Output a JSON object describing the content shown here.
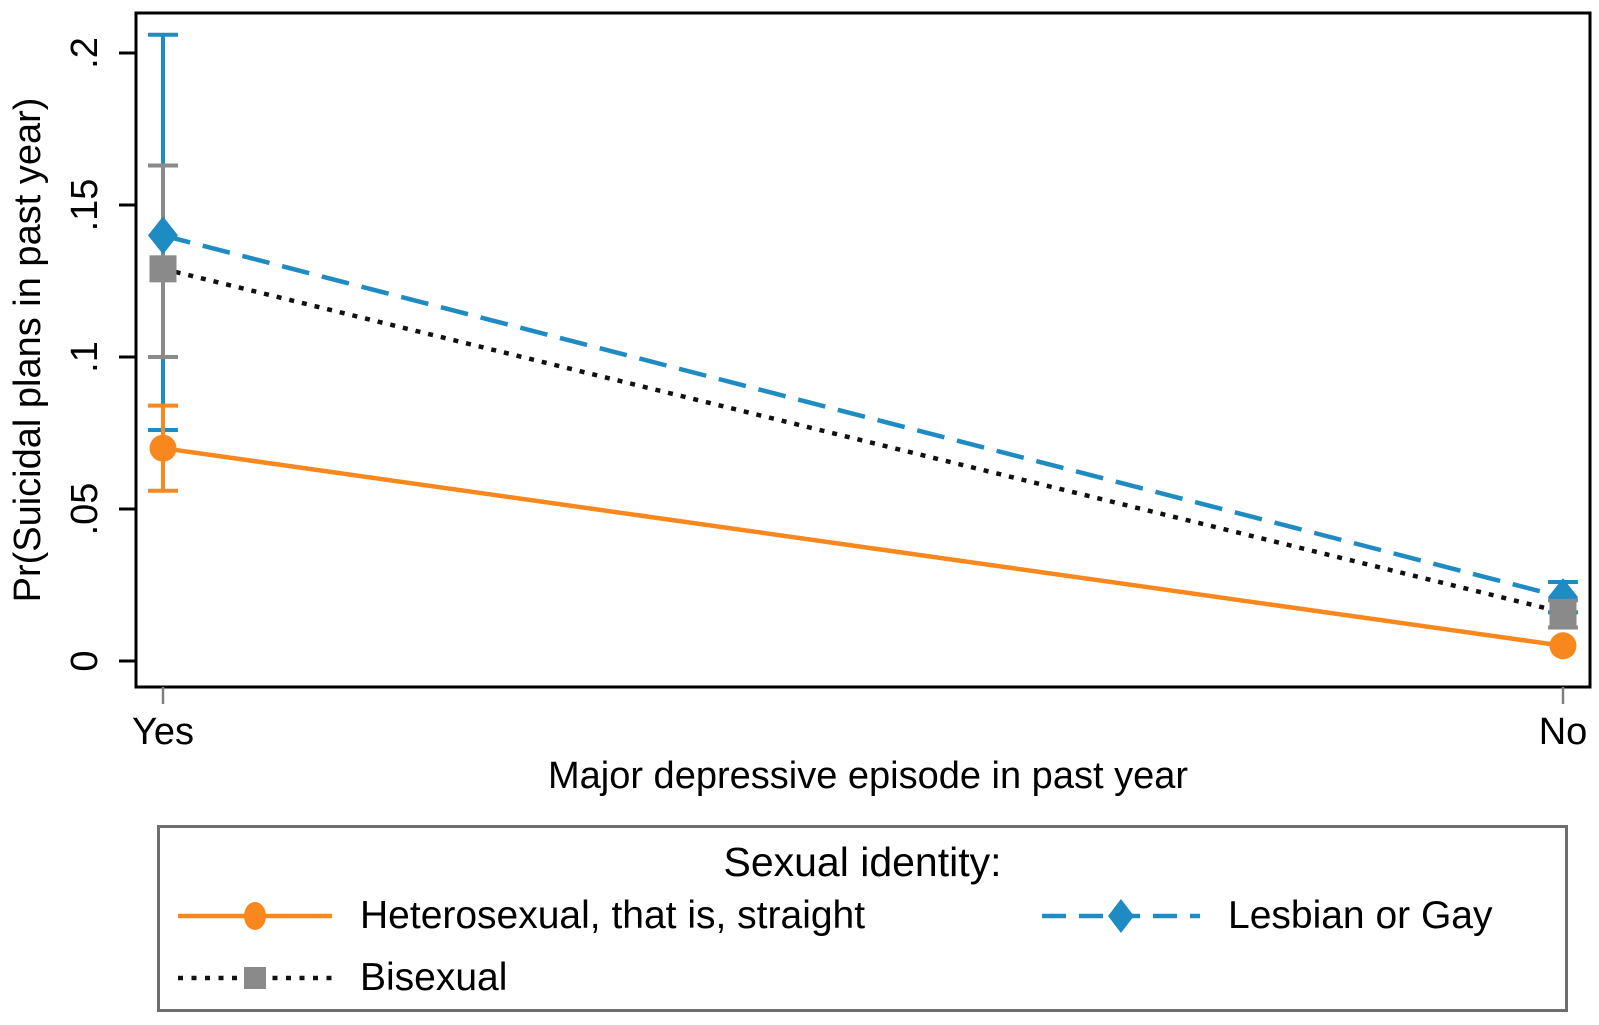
{
  "chart_data": {
    "type": "line",
    "title": "",
    "xlabel": "Major depressive episode in past year",
    "ylabel": "Pr(Suicidal plans in past year)",
    "categories": [
      "Yes",
      "No"
    ],
    "ytick_labels": [
      "0",
      ".05",
      ".1",
      ".15",
      ".2"
    ],
    "ytick_values": [
      0,
      0.05,
      0.1,
      0.15,
      0.2
    ],
    "ylim": [
      -0.009,
      0.215
    ],
    "grid": false,
    "legend": {
      "title": "Sexual identity:",
      "position": "bottom"
    },
    "colors": {
      "heterosexual": "#F8871D",
      "lesbian_gay": "#1E8BC3",
      "bisexual_marker": "#8A8A8A",
      "bisexual_line": "#111111",
      "axis": "#000000",
      "x_tick": "#808080",
      "legend_border": "#6E6E6E"
    },
    "series": [
      {
        "name": "Heterosexual, that is, straight",
        "marker": "circle",
        "line_style": "solid",
        "marker_color": "#F8871D",
        "line_color": "#F8871D",
        "values": [
          0.07,
          0.005
        ],
        "ci_low": [
          0.056,
          null
        ],
        "ci_high": [
          0.084,
          null
        ]
      },
      {
        "name": "Lesbian or Gay",
        "marker": "diamond",
        "line_style": "dashed",
        "marker_color": "#1E8BC3",
        "line_color": "#1E8BC3",
        "values": [
          0.14,
          0.021
        ],
        "ci_low": [
          0.076,
          0.016
        ],
        "ci_high": [
          0.206,
          0.026
        ]
      },
      {
        "name": "Bisexual",
        "marker": "square",
        "line_style": "dotted",
        "marker_color": "#8A8A8A",
        "line_color": "#111111",
        "values": [
          0.129,
          0.016
        ],
        "ci_low": [
          0.1,
          0.011
        ],
        "ci_high": [
          0.163,
          0.02
        ]
      }
    ]
  }
}
